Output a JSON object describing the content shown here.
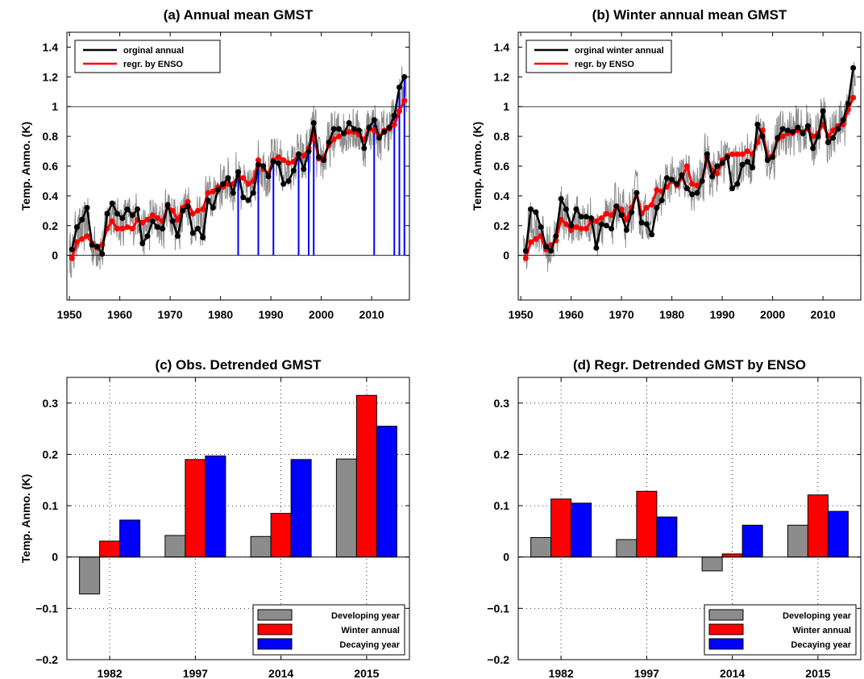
{
  "chart_data": [
    {
      "panel": "a",
      "type": "line",
      "title": "(a) Annual mean GMST",
      "ylabel": "Temp. Anmo. (K)",
      "xlim": [
        1949.5,
        2017.5
      ],
      "ylim": [
        -0.3,
        1.5
      ],
      "xticks": [
        1950,
        1960,
        1970,
        1980,
        1990,
        2000,
        2010
      ],
      "yticks": [
        0,
        0.2,
        0.4,
        0.6,
        0.8,
        1,
        1.2,
        1.4
      ],
      "ytick_labels": [
        "0",
        "0.2",
        "0.4",
        "0.6",
        "0.8",
        "1",
        "1.2",
        "1.4"
      ],
      "reference_lines": [
        0,
        1
      ],
      "legend_position": "top-left",
      "colors": {
        "observed": "#000000",
        "regressed": "#ff0000",
        "monthly": "#8c8c8c",
        "markers": "#0000ff"
      },
      "series": [
        {
          "name": "orginal annual",
          "x": [
            1950.5,
            1951.5,
            1952.5,
            1953.5,
            1954.5,
            1955.5,
            1956.5,
            1957.5,
            1958.5,
            1959.5,
            1960.5,
            1961.5,
            1962.5,
            1963.5,
            1964.5,
            1965.5,
            1966.5,
            1967.5,
            1968.5,
            1969.5,
            1970.5,
            1971.5,
            1972.5,
            1973.5,
            1974.5,
            1975.5,
            1976.5,
            1977.5,
            1978.5,
            1979.5,
            1980.5,
            1981.5,
            1982.5,
            1983.5,
            1984.5,
            1985.5,
            1986.5,
            1987.5,
            1988.5,
            1989.5,
            1990.5,
            1991.5,
            1992.5,
            1993.5,
            1994.5,
            1995.5,
            1996.5,
            1997.5,
            1998.5,
            1999.5,
            2000.5,
            2001.5,
            2002.5,
            2003.5,
            2004.5,
            2005.5,
            2006.5,
            2007.5,
            2008.5,
            2009.5,
            2010.5,
            2011.5,
            2012.5,
            2013.5,
            2014.5,
            2015.5,
            2016.5
          ],
          "y": [
            0.04,
            0.19,
            0.24,
            0.32,
            0.07,
            0.06,
            0.01,
            0.28,
            0.35,
            0.28,
            0.25,
            0.31,
            0.27,
            0.31,
            0.08,
            0.13,
            0.23,
            0.19,
            0.18,
            0.34,
            0.23,
            0.13,
            0.3,
            0.33,
            0.15,
            0.18,
            0.12,
            0.37,
            0.32,
            0.44,
            0.48,
            0.52,
            0.42,
            0.56,
            0.39,
            0.37,
            0.42,
            0.61,
            0.6,
            0.53,
            0.63,
            0.62,
            0.48,
            0.5,
            0.57,
            0.68,
            0.58,
            0.7,
            0.89,
            0.66,
            0.64,
            0.76,
            0.85,
            0.85,
            0.82,
            0.89,
            0.85,
            0.84,
            0.72,
            0.86,
            0.91,
            0.79,
            0.83,
            0.86,
            0.94,
            1.13,
            1.2
          ]
        },
        {
          "name": "regr. by ENSO",
          "x": [
            1950.5,
            1951.5,
            1952.5,
            1953.5,
            1954.5,
            1955.5,
            1956.5,
            1957.5,
            1958.5,
            1959.5,
            1960.5,
            1961.5,
            1962.5,
            1963.5,
            1964.5,
            1965.5,
            1966.5,
            1967.5,
            1968.5,
            1969.5,
            1970.5,
            1971.5,
            1972.5,
            1973.5,
            1974.5,
            1975.5,
            1976.5,
            1977.5,
            1978.5,
            1979.5,
            1980.5,
            1981.5,
            1982.5,
            1983.5,
            1984.5,
            1985.5,
            1986.5,
            1987.5,
            1988.5,
            1989.5,
            1990.5,
            1991.5,
            1992.5,
            1993.5,
            1994.5,
            1995.5,
            1996.5,
            1997.5,
            1998.5,
            1999.5,
            2000.5,
            2001.5,
            2002.5,
            2003.5,
            2004.5,
            2005.5,
            2006.5,
            2007.5,
            2008.5,
            2009.5,
            2010.5,
            2011.5,
            2012.5,
            2013.5,
            2014.5,
            2015.5,
            2016.5
          ],
          "y": [
            -0.02,
            0.09,
            0.11,
            0.13,
            0.08,
            0.05,
            0.07,
            0.18,
            0.23,
            0.18,
            0.18,
            0.19,
            0.18,
            0.24,
            0.22,
            0.24,
            0.27,
            0.25,
            0.23,
            0.33,
            0.3,
            0.24,
            0.32,
            0.36,
            0.28,
            0.3,
            0.31,
            0.42,
            0.43,
            0.46,
            0.46,
            0.48,
            0.48,
            0.53,
            0.52,
            0.48,
            0.5,
            0.64,
            0.58,
            0.55,
            0.64,
            0.66,
            0.64,
            0.62,
            0.63,
            0.68,
            0.67,
            0.72,
            0.81,
            0.65,
            0.66,
            0.74,
            0.78,
            0.8,
            0.82,
            0.83,
            0.83,
            0.81,
            0.78,
            0.85,
            0.84,
            0.8,
            0.84,
            0.85,
            0.88,
            0.97,
            1.04
          ]
        }
      ],
      "markers": {
        "name": "blue lines",
        "x": [
          1983.5,
          1987.5,
          1990.5,
          1995.5,
          1997.5,
          1998.5,
          2010.5,
          2014.5,
          2015.5,
          2016.5
        ],
        "y": [
          0.55,
          0.62,
          0.62,
          0.66,
          0.72,
          0.88,
          0.88,
          0.95,
          1.1,
          1.2
        ]
      }
    },
    {
      "panel": "b",
      "type": "line",
      "title": "(b) Winter annual mean GMST",
      "ylabel": "Temp. Anmo. (K)",
      "xlim": [
        1949.5,
        2017.5
      ],
      "ylim": [
        -0.3,
        1.5
      ],
      "xticks": [
        1950,
        1960,
        1970,
        1980,
        1990,
        2000,
        2010
      ],
      "yticks": [
        0,
        0.2,
        0.4,
        0.6,
        0.8,
        1,
        1.2,
        1.4
      ],
      "ytick_labels": [
        "0",
        "0.2",
        "0.4",
        "0.6",
        "0.8",
        "1",
        "1.2",
        "1.4"
      ],
      "reference_lines": [
        0,
        1
      ],
      "legend_position": "top-left",
      "colors": {
        "observed": "#000000",
        "regressed": "#ff0000",
        "monthly": "#8c8c8c"
      },
      "series": [
        {
          "name": "orginal winter annual",
          "x": [
            1951,
            1952,
            1953,
            1954,
            1955,
            1956,
            1957,
            1958,
            1959,
            1960,
            1961,
            1962,
            1963,
            1964,
            1965,
            1966,
            1967,
            1968,
            1969,
            1970,
            1971,
            1972,
            1973,
            1974,
            1975,
            1976,
            1977,
            1978,
            1979,
            1980,
            1981,
            1982,
            1983,
            1984,
            1985,
            1986,
            1987,
            1988,
            1989,
            1990,
            1991,
            1992,
            1993,
            1994,
            1995,
            1996,
            1997,
            1998,
            1999,
            2000,
            2001,
            2002,
            2003,
            2004,
            2005,
            2006,
            2007,
            2008,
            2009,
            2010,
            2011,
            2012,
            2013,
            2014,
            2015,
            2016
          ],
          "y": [
            0.03,
            0.31,
            0.29,
            0.19,
            0.06,
            0.03,
            0.13,
            0.38,
            0.31,
            0.2,
            0.31,
            0.26,
            0.26,
            0.25,
            0.05,
            0.21,
            0.2,
            0.18,
            0.33,
            0.27,
            0.17,
            0.29,
            0.42,
            0.22,
            0.21,
            0.14,
            0.32,
            0.37,
            0.52,
            0.51,
            0.48,
            0.54,
            0.45,
            0.41,
            0.42,
            0.5,
            0.68,
            0.53,
            0.6,
            0.62,
            0.66,
            0.45,
            0.48,
            0.61,
            0.63,
            0.59,
            0.88,
            0.8,
            0.64,
            0.66,
            0.79,
            0.85,
            0.84,
            0.83,
            0.86,
            0.82,
            0.87,
            0.72,
            0.8,
            0.97,
            0.76,
            0.79,
            0.85,
            0.91,
            1.02,
            1.26
          ]
        },
        {
          "name": "regr. by ENSO",
          "x": [
            1951,
            1952,
            1953,
            1954,
            1955,
            1956,
            1957,
            1958,
            1959,
            1960,
            1961,
            1962,
            1963,
            1964,
            1965,
            1966,
            1967,
            1968,
            1969,
            1970,
            1971,
            1972,
            1973,
            1974,
            1975,
            1976,
            1977,
            1978,
            1979,
            1980,
            1981,
            1982,
            1983,
            1984,
            1985,
            1986,
            1987,
            1988,
            1989,
            1990,
            1991,
            1992,
            1993,
            1994,
            1995,
            1996,
            1997,
            1998,
            1999,
            2000,
            2001,
            2002,
            2003,
            2004,
            2005,
            2006,
            2007,
            2008,
            2009,
            2010,
            2011,
            2012,
            2013,
            2014,
            2015,
            2016
          ],
          "y": [
            -0.02,
            0.09,
            0.11,
            0.13,
            0.04,
            0.07,
            0.1,
            0.24,
            0.21,
            0.17,
            0.19,
            0.18,
            0.18,
            0.23,
            0.23,
            0.25,
            0.28,
            0.27,
            0.33,
            0.31,
            0.24,
            0.32,
            0.42,
            0.28,
            0.32,
            0.34,
            0.44,
            0.43,
            0.46,
            0.5,
            0.47,
            0.52,
            0.6,
            0.48,
            0.47,
            0.5,
            0.66,
            0.57,
            0.55,
            0.64,
            0.67,
            0.68,
            0.68,
            0.68,
            0.7,
            0.68,
            0.76,
            0.84,
            0.66,
            0.67,
            0.78,
            0.8,
            0.82,
            0.82,
            0.84,
            0.83,
            0.85,
            0.8,
            0.82,
            0.88,
            0.8,
            0.84,
            0.87,
            0.88,
            0.98,
            1.06
          ]
        }
      ]
    },
    {
      "panel": "c",
      "type": "bar",
      "title": "(c) Obs. Detrended GMST",
      "ylabel": "Temp. Anmo. (K)",
      "categories": [
        "1982",
        "1997",
        "2014",
        "2015"
      ],
      "ylim": [
        -0.2,
        0.35
      ],
      "yticks": [
        -0.2,
        -0.1,
        0,
        0.1,
        0.2,
        0.3
      ],
      "ytick_labels": [
        "−0.2",
        "−0.1",
        "0",
        "0.1",
        "0.2",
        "0.3"
      ],
      "grid": true,
      "legend_position": "bottom-right",
      "series": [
        {
          "name": "Developing year",
          "color": "#8c8c8c",
          "values": [
            -0.072,
            0.042,
            0.04,
            0.191
          ]
        },
        {
          "name": "Winter annual",
          "color": "#ff0000",
          "values": [
            0.031,
            0.19,
            0.085,
            0.315
          ]
        },
        {
          "name": "Decaying year",
          "color": "#0000ff",
          "values": [
            0.072,
            0.197,
            0.19,
            0.255
          ]
        }
      ]
    },
    {
      "panel": "d",
      "type": "bar",
      "title": "(d) Regr. Detrended GMST by ENSO",
      "ylabel": "",
      "categories": [
        "1982",
        "1997",
        "2014",
        "2015"
      ],
      "ylim": [
        -0.2,
        0.35
      ],
      "yticks": [
        -0.2,
        -0.1,
        0,
        0.1,
        0.2,
        0.3
      ],
      "ytick_labels": [
        "−0.2",
        "−0.1",
        "0",
        "0.1",
        "0.2",
        "0.3"
      ],
      "grid": true,
      "legend_position": "bottom-right",
      "series": [
        {
          "name": "Developing year",
          "color": "#8c8c8c",
          "values": [
            0.038,
            0.034,
            -0.027,
            0.062
          ]
        },
        {
          "name": "Winter annual",
          "color": "#ff0000",
          "values": [
            0.113,
            0.128,
            0.006,
            0.121
          ]
        },
        {
          "name": "Decaying year",
          "color": "#0000ff",
          "values": [
            0.105,
            0.078,
            0.062,
            0.089
          ]
        }
      ]
    }
  ]
}
